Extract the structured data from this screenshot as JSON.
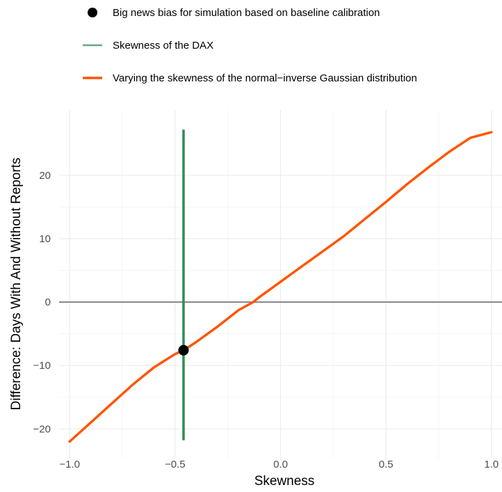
{
  "chart_data": {
    "type": "line",
    "xlabel": "Skewness",
    "ylabel": "Difference: Days With And Without Reports",
    "xlim": [
      -1.05,
      1.05
    ],
    "ylim": [
      -24.8,
      30.3
    ],
    "x_ticks": [
      -1.0,
      -0.5,
      0.0,
      0.5,
      1.0
    ],
    "x_tick_labels": [
      "−1.0",
      "−0.5",
      "0.0",
      "0.5",
      "1.0"
    ],
    "y_ticks": [
      -20,
      -10,
      0,
      10,
      20
    ],
    "y_tick_labels": [
      "−20",
      "−10",
      "0",
      "10",
      "20"
    ],
    "grid": true,
    "zero_line": 0,
    "legend_position": "top",
    "legend": [
      {
        "label": "Big news bias for simulation based on baseline calibration",
        "kind": "point",
        "color": "#000000"
      },
      {
        "label": "Skewness of the DAX",
        "kind": "vline",
        "color": "#2e8b57"
      },
      {
        "label": "Varying the skewness of the normal−inverse Gaussian distribution",
        "kind": "line",
        "color": "#ff5500"
      }
    ],
    "series": [
      {
        "color": "#ff5500",
        "x": [
          -1.0,
          -0.9,
          -0.8,
          -0.7,
          -0.6,
          -0.5,
          -0.46,
          -0.4,
          -0.3,
          -0.2,
          -0.13,
          -0.1,
          0.0,
          0.1,
          0.2,
          0.3,
          0.4,
          0.5,
          0.6,
          0.7,
          0.8,
          0.9,
          1.0
        ],
        "y": [
          -22.0,
          -19.0,
          -16.0,
          -13.0,
          -10.3,
          -8.2,
          -7.6,
          -6.3,
          -3.9,
          -1.3,
          0.0,
          0.8,
          3.2,
          5.6,
          8.0,
          10.4,
          13.1,
          15.8,
          18.6,
          21.2,
          23.7,
          25.9,
          26.8
        ]
      }
    ],
    "vline": {
      "x": -0.46,
      "y_range": [
        -21.8,
        27.2
      ],
      "color": "#2e8b57"
    },
    "point": {
      "x": -0.46,
      "y": -7.6,
      "color": "#000000"
    }
  }
}
